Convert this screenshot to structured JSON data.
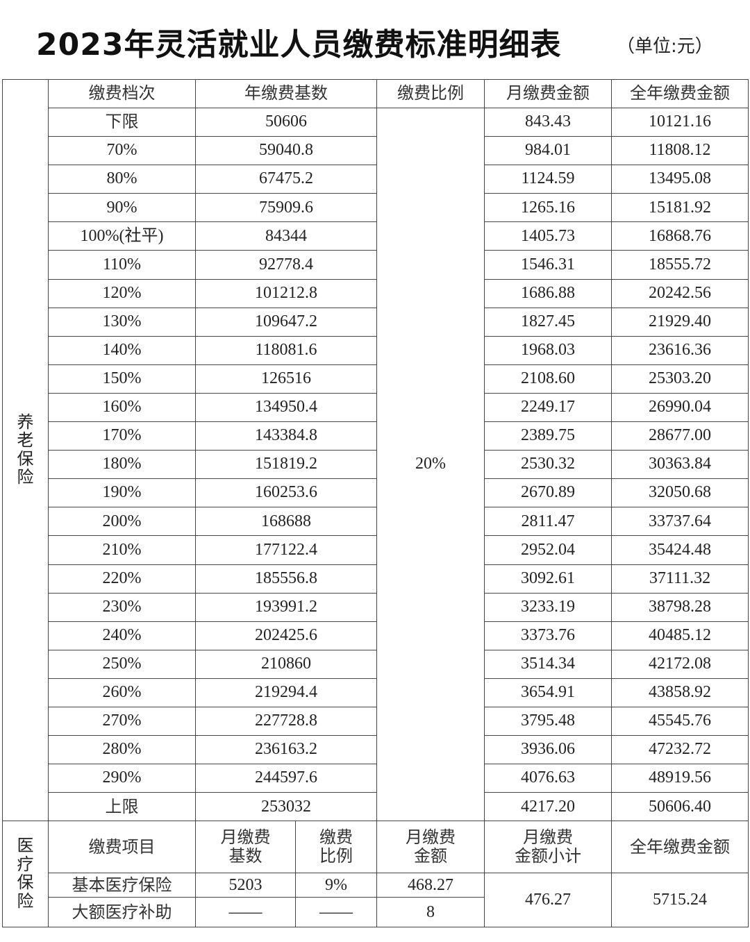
{
  "title": "2023年灵活就业人员缴费标准明细表",
  "unit": "（单位:元）",
  "pension": {
    "section_label": "养老保险",
    "headers": [
      "缴费档次",
      "年缴费基数",
      "缴费比例",
      "月缴费金额",
      "全年缴费金额"
    ],
    "ratio": "20%",
    "rows": [
      [
        "下限",
        "50606",
        "843.43",
        "10121.16"
      ],
      [
        "70%",
        "59040.8",
        "984.01",
        "11808.12"
      ],
      [
        "80%",
        "67475.2",
        "1124.59",
        "13495.08"
      ],
      [
        "90%",
        "75909.6",
        "1265.16",
        "15181.92"
      ],
      [
        "100%(社平)",
        "84344",
        "1405.73",
        "16868.76"
      ],
      [
        "110%",
        "92778.4",
        "1546.31",
        "18555.72"
      ],
      [
        "120%",
        "101212.8",
        "1686.88",
        "20242.56"
      ],
      [
        "130%",
        "109647.2",
        "1827.45",
        "21929.40"
      ],
      [
        "140%",
        "118081.6",
        "1968.03",
        "23616.36"
      ],
      [
        "150%",
        "126516",
        "2108.60",
        "25303.20"
      ],
      [
        "160%",
        "134950.4",
        "2249.17",
        "26990.04"
      ],
      [
        "170%",
        "143384.8",
        "2389.75",
        "28677.00"
      ],
      [
        "180%",
        "151819.2",
        "2530.32",
        "30363.84"
      ],
      [
        "190%",
        "160253.6",
        "2670.89",
        "32050.68"
      ],
      [
        "200%",
        "168688",
        "2811.47",
        "33737.64"
      ],
      [
        "210%",
        "177122.4",
        "2952.04",
        "35424.48"
      ],
      [
        "220%",
        "185556.8",
        "3092.61",
        "37111.32"
      ],
      [
        "230%",
        "193991.2",
        "3233.19",
        "38798.28"
      ],
      [
        "240%",
        "202425.6",
        "3373.76",
        "40485.12"
      ],
      [
        "250%",
        "210860",
        "3514.34",
        "42172.08"
      ],
      [
        "260%",
        "219294.4",
        "3654.91",
        "43858.92"
      ],
      [
        "270%",
        "227728.8",
        "3795.48",
        "45545.76"
      ],
      [
        "280%",
        "236163.2",
        "3936.06",
        "47232.72"
      ],
      [
        "290%",
        "244597.6",
        "4076.63",
        "48919.56"
      ],
      [
        "上限",
        "253032",
        "4217.20",
        "50606.40"
      ]
    ]
  },
  "medical": {
    "section_label": "医疗保险",
    "headers": [
      "缴费项目",
      "月缴费\n基数",
      "缴费\n比例",
      "月缴费\n金额",
      "月缴费\n金额小计",
      "全年缴费金额"
    ],
    "rows": [
      [
        "基本医疗保险",
        "5203",
        "9%",
        "468.27"
      ],
      [
        "大额医疗补助",
        "——",
        "——",
        "8"
      ]
    ],
    "monthly_subtotal": "476.27",
    "annual_total": "5715.24"
  }
}
